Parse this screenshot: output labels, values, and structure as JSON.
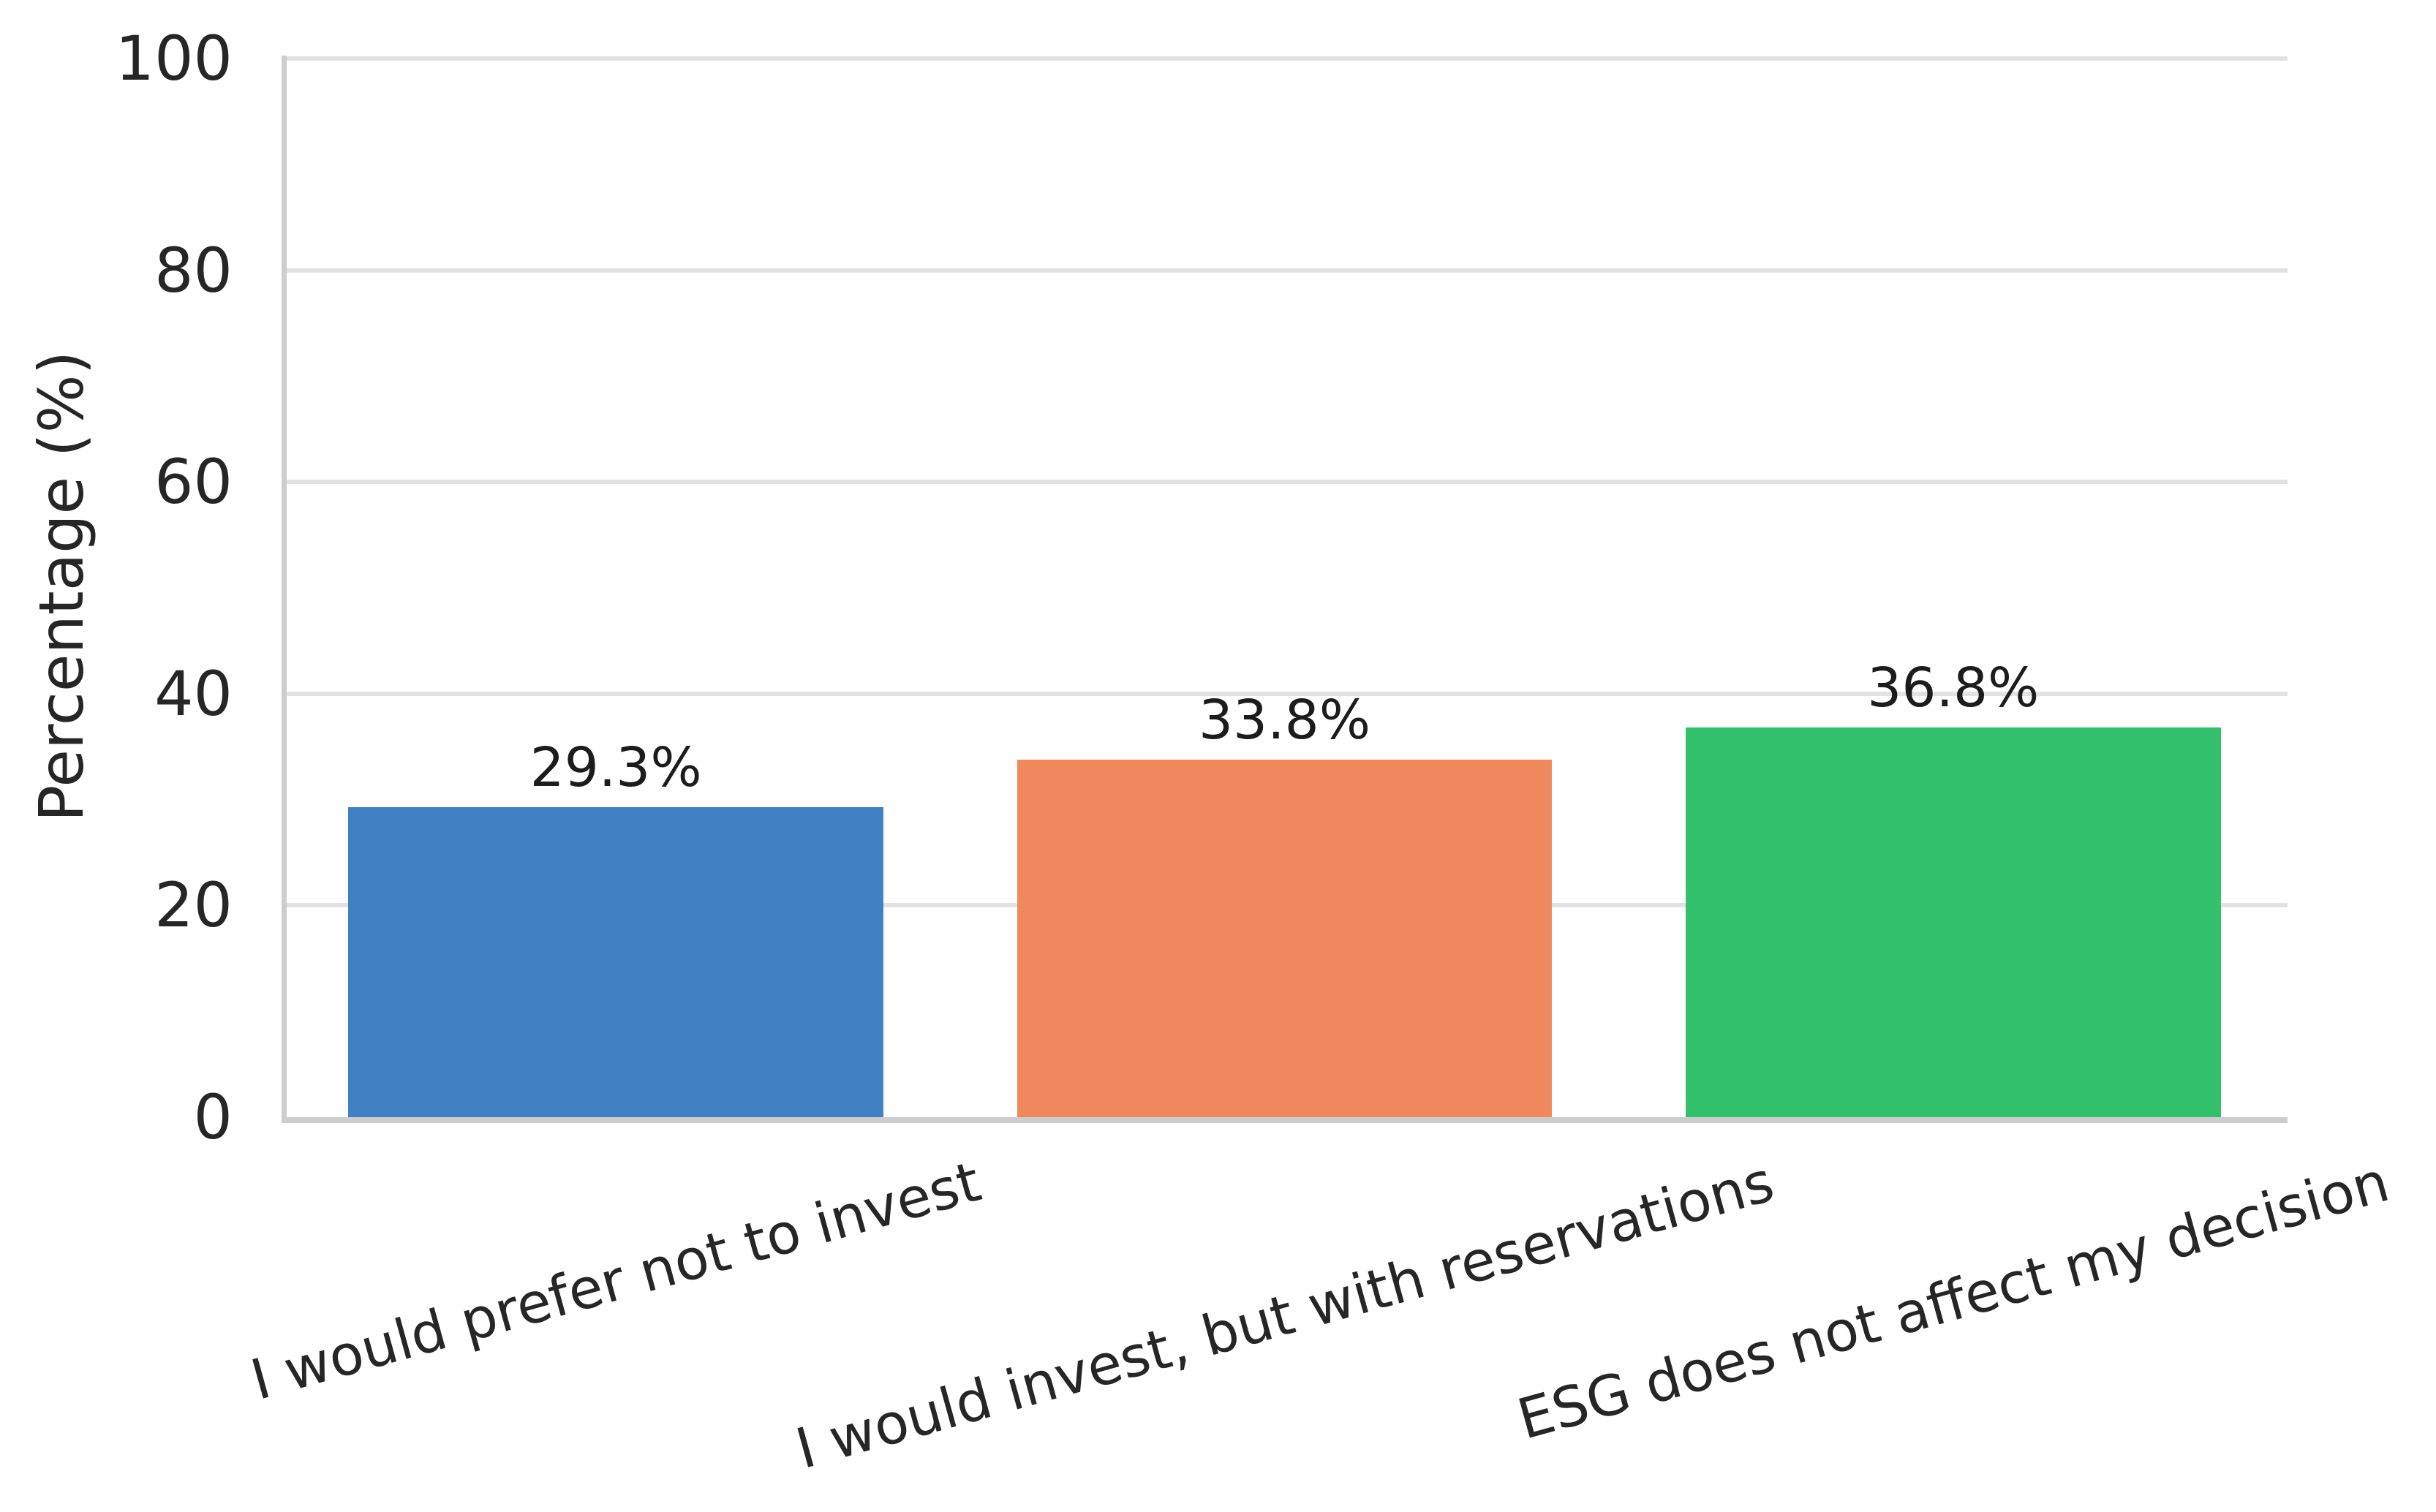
{
  "chart_data": {
    "type": "bar",
    "title": "",
    "categories": [
      "I would prefer not to invest",
      "I would invest, but with reservations",
      "ESG does not affect my decision"
    ],
    "values": [
      29.3,
      33.8,
      36.8
    ],
    "value_labels": [
      "29.3%",
      "33.8%",
      "36.8%"
    ],
    "bar_colors": [
      "#4280c4",
      "#f08a5e",
      "#33c06c"
    ],
    "ylabel": "Percentage (%)",
    "xlabel": "",
    "ylim": [
      0,
      100
    ],
    "yticks": [
      "0",
      "20",
      "40",
      "60",
      "80",
      "100"
    ],
    "grid": "horizontal-gridlines",
    "legend_position": "none",
    "colors": {
      "gridline": "#e2e2e2",
      "spine": "#cdcdcd",
      "tick_label": "#262626",
      "value_label": "#1c1c1c",
      "background": "#ffffff"
    }
  }
}
